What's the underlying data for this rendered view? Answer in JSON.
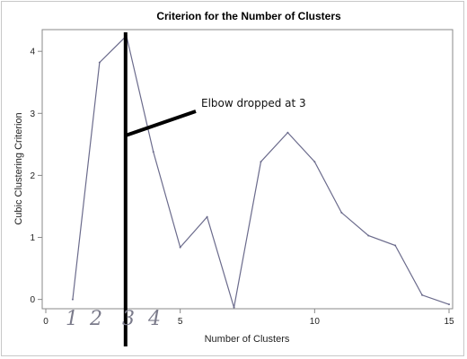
{
  "chart_data": {
    "type": "line",
    "title": "Criterion for the Number of Clusters",
    "xlabel": "Number of Clusters",
    "ylabel": "Cubic Clustering Criterion",
    "xlim": [
      0,
      15
    ],
    "ylim": [
      -0.15,
      4.35
    ],
    "x_ticks": [
      0,
      5,
      10,
      15
    ],
    "y_ticks": [
      0,
      1,
      2,
      3,
      4
    ],
    "grid": false,
    "series": [
      {
        "x": [
          1,
          2,
          3,
          4,
          5,
          6,
          7,
          8,
          9,
          10,
          11,
          12,
          13,
          14,
          15
        ],
        "values": [
          0.0,
          3.82,
          4.25,
          2.38,
          0.84,
          1.33,
          -0.13,
          2.22,
          2.69,
          2.22,
          1.4,
          1.03,
          0.87,
          0.07,
          -0.08
        ],
        "color": "#6b6b8c"
      }
    ],
    "annotation": {
      "text": "Elbow dropped at 3",
      "marker_x": 3
    },
    "handwritten_digits": [
      "1",
      "2",
      "3",
      "4"
    ],
    "colors": {
      "marker": "#000000",
      "axis": "#888888"
    }
  }
}
